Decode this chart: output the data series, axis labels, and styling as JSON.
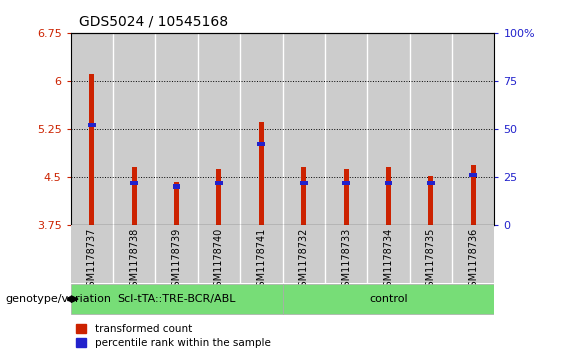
{
  "title": "GDS5024 / 10545168",
  "samples": [
    "GSM1178737",
    "GSM1178738",
    "GSM1178739",
    "GSM1178740",
    "GSM1178741",
    "GSM1178732",
    "GSM1178733",
    "GSM1178734",
    "GSM1178735",
    "GSM1178736"
  ],
  "transformed_count": [
    6.1,
    4.65,
    4.42,
    4.62,
    5.35,
    4.65,
    4.62,
    4.65,
    4.52,
    4.68
  ],
  "percentile_rank": [
    52,
    22,
    20,
    22,
    42,
    22,
    22,
    22,
    22,
    26
  ],
  "ylim_left": [
    3.75,
    6.75
  ],
  "ylim_right": [
    0,
    100
  ],
  "yticks_left": [
    3.75,
    4.5,
    5.25,
    6.0,
    6.75
  ],
  "ytick_labels_left": [
    "3.75",
    "4.5",
    "5.25",
    "6",
    "6.75"
  ],
  "yticks_right": [
    0,
    25,
    50,
    75,
    100
  ],
  "ytick_labels_right": [
    "0",
    "25",
    "50",
    "75",
    "100%"
  ],
  "bar_color": "#cc2200",
  "percentile_color": "#2222cc",
  "bar_bottom": 3.75,
  "group1_label": "Scl-tTA::TRE-BCR/ABL",
  "group2_label": "control",
  "group1_count": 5,
  "group2_count": 5,
  "group_bg_color": "#77dd77",
  "sample_bg_color": "#cccccc",
  "bar_width": 0.12,
  "ylabel_left_color": "#cc2200",
  "ylabel_right_color": "#2222cc",
  "grid_linestyle": ":",
  "genotype_label": "genotype/variation",
  "legend_count_label": "transformed count",
  "legend_pct_label": "percentile rank within the sample",
  "title_fontsize": 10,
  "tick_fontsize": 8,
  "sample_fontsize": 7,
  "group_fontsize": 8,
  "legend_fontsize": 7.5,
  "genotype_fontsize": 8
}
